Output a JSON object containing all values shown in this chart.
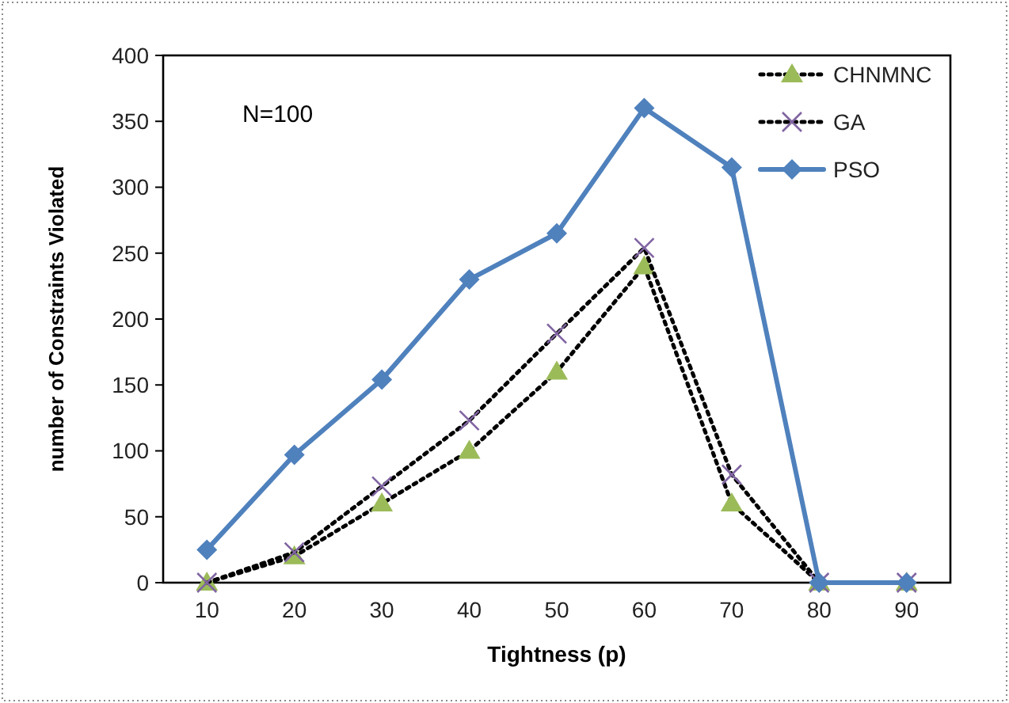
{
  "chart_data": {
    "type": "line",
    "xlabel": "Tightness (p)",
    "ylabel": "number of Constraints Violated",
    "categories": [
      "10",
      "20",
      "30",
      "40",
      "50",
      "60",
      "70",
      "80",
      "90"
    ],
    "series": [
      {
        "name": "CHNMNC",
        "color": "#9bbb59",
        "marker": "triangle",
        "line_style": "dotted",
        "values": [
          0,
          20,
          60,
          100,
          160,
          240,
          60,
          0,
          0
        ]
      },
      {
        "name": "GA",
        "color": "#8064a2",
        "marker": "cross",
        "line_style": "dotted",
        "values": [
          0,
          23,
          73,
          123,
          189,
          254,
          82,
          0,
          0
        ]
      },
      {
        "name": "PSO",
        "color": "#4f81bd",
        "marker": "diamond",
        "line_style": "solid",
        "values": [
          25,
          97,
          154,
          230,
          265,
          360,
          315,
          0,
          0
        ]
      }
    ],
    "ylim": [
      0,
      400
    ],
    "yticks": [
      0,
      50,
      100,
      150,
      200,
      250,
      300,
      350,
      400
    ],
    "grid": false,
    "legend": "top right",
    "annotations": [
      "N=100"
    ]
  }
}
